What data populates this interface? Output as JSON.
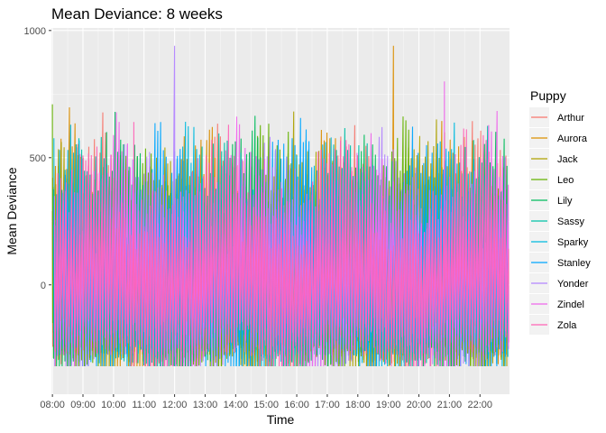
{
  "chart_data": {
    "type": "line",
    "title": "Mean Deviance: 8 weeks",
    "xlabel": "Time",
    "ylabel": "Mean Deviance",
    "xlim": [
      "07:58",
      "22:58"
    ],
    "ylim": [
      -430,
      1010
    ],
    "x_ticks": [
      "08:00",
      "09:00",
      "10:00",
      "11:00",
      "12:00",
      "13:00",
      "14:00",
      "15:00",
      "16:00",
      "17:00",
      "18:00",
      "19:00",
      "20:00",
      "21:00",
      "22:00"
    ],
    "y_ticks": [
      0,
      500,
      1000
    ],
    "grid": true,
    "legend": {
      "title": "Puppy",
      "placement": "right"
    },
    "series": [
      {
        "name": "Arthur",
        "color": "#F8766D",
        "peak_time": "12:50",
        "peak_value": 250
      },
      {
        "name": "Aurora",
        "color": "#DB8E00",
        "peak_time": "19:10",
        "peak_value": 940
      },
      {
        "name": "Jack",
        "color": "#AEA200",
        "peak_time": "14:10",
        "peak_value": 460
      },
      {
        "name": "Leo",
        "color": "#64B200",
        "peak_time": "08:00",
        "peak_value": 710
      },
      {
        "name": "Lily",
        "color": "#00BD5C",
        "peak_time": "10:00",
        "peak_value": 420
      },
      {
        "name": "Sassy",
        "color": "#00C1A7",
        "peak_time": "14:10",
        "peak_value": 520
      },
      {
        "name": "Sparky",
        "color": "#00BADE",
        "peak_time": "16:00",
        "peak_value": 510
      },
      {
        "name": "Stanley",
        "color": "#00A6FF",
        "peak_time": "12:00",
        "peak_value": 500
      },
      {
        "name": "Yonder",
        "color": "#B385FF",
        "peak_time": "12:00",
        "peak_value": 940
      },
      {
        "name": "Zindel",
        "color": "#EF67EB",
        "peak_time": "20:50",
        "peak_value": 800
      },
      {
        "name": "Zola",
        "color": "#FF63B6",
        "peak_time": "10:40",
        "peak_value": 640
      }
    ]
  }
}
